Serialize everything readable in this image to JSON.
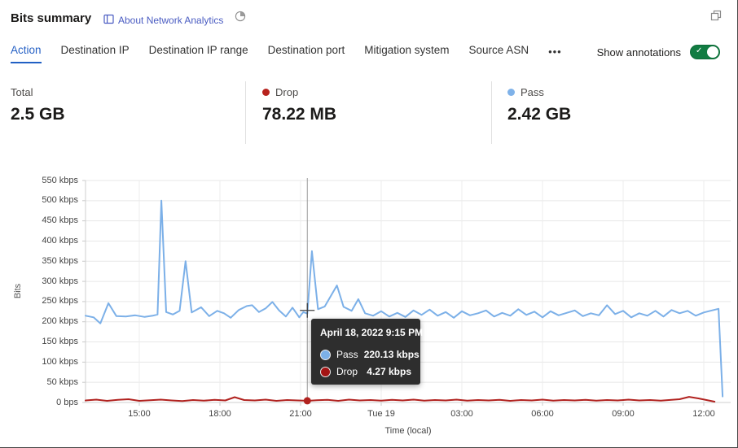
{
  "header": {
    "title": "Bits summary",
    "about_link": "About Network Analytics"
  },
  "tabs": {
    "items": [
      "Action",
      "Destination IP",
      "Destination IP range",
      "Destination port",
      "Mitigation system",
      "Source ASN"
    ],
    "active": "Action",
    "more": "•••"
  },
  "annotations_toggle": {
    "label": "Show annotations",
    "state": "on"
  },
  "stats": [
    {
      "label": "Total",
      "value": "2.5 GB",
      "dot_color": ""
    },
    {
      "label": "Drop",
      "value": "78.22 MB",
      "dot_color": "#b7221d"
    },
    {
      "label": "Pass",
      "value": "2.42 GB",
      "dot_color": "#7fb2e9"
    }
  ],
  "tooltip": {
    "title": "April 18, 2022 9:15 PM",
    "rows": [
      {
        "label": "Pass",
        "value": "220.13 kbps",
        "color": "#7cb0e8"
      },
      {
        "label": "Drop",
        "value": "4.27 kbps",
        "color": "#a31414"
      }
    ]
  },
  "chart_data": {
    "type": "line",
    "title": "Bits summary",
    "xlabel": "Time (local)",
    "ylabel": "Bits",
    "ylim": [
      0,
      550000
    ],
    "x_unit": "hours after 2022-04-18 13:00 local",
    "grid": true,
    "y_ticks": [
      {
        "label": "550 kbps",
        "v": 550
      },
      {
        "label": "500 kbps",
        "v": 500
      },
      {
        "label": "450 kbps",
        "v": 450
      },
      {
        "label": "400 kbps",
        "v": 400
      },
      {
        "label": "350 kbps",
        "v": 350
      },
      {
        "label": "300 kbps",
        "v": 300
      },
      {
        "label": "250 kbps",
        "v": 250
      },
      {
        "label": "200 kbps",
        "v": 200
      },
      {
        "label": "150 kbps",
        "v": 150
      },
      {
        "label": "100 kbps",
        "v": 100
      },
      {
        "label": "50 kbps",
        "v": 50
      },
      {
        "label": "0 bps",
        "v": 0
      }
    ],
    "x_ticks": [
      {
        "label": "15:00",
        "t": 2
      },
      {
        "label": "18:00",
        "t": 5
      },
      {
        "label": "21:00",
        "t": 8
      },
      {
        "label": "Tue 19",
        "t": 11
      },
      {
        "label": "03:00",
        "t": 14
      },
      {
        "label": "06:00",
        "t": 17
      },
      {
        "label": "09:00",
        "t": 20
      },
      {
        "label": "12:00",
        "t": 23
      }
    ],
    "crosshair": {
      "t": 8.25,
      "time": "April 18, 2022 9:15 PM",
      "pass_kbps": 220.13,
      "drop_kbps": 4.27
    },
    "series": [
      {
        "name": "Pass",
        "color": "#7cb0e8",
        "unit": "kbps",
        "points": [
          [
            0,
            215
          ],
          [
            0.3,
            211
          ],
          [
            0.55,
            196
          ],
          [
            0.85,
            246
          ],
          [
            1.15,
            214
          ],
          [
            1.5,
            213
          ],
          [
            1.85,
            216
          ],
          [
            2.2,
            212
          ],
          [
            2.5,
            215
          ],
          [
            2.68,
            218
          ],
          [
            2.82,
            500
          ],
          [
            3.0,
            224
          ],
          [
            3.25,
            218
          ],
          [
            3.5,
            227
          ],
          [
            3.72,
            350
          ],
          [
            3.95,
            223
          ],
          [
            4.3,
            236
          ],
          [
            4.6,
            214
          ],
          [
            4.9,
            227
          ],
          [
            5.15,
            221
          ],
          [
            5.4,
            210
          ],
          [
            5.7,
            229
          ],
          [
            6.0,
            239
          ],
          [
            6.2,
            241
          ],
          [
            6.45,
            224
          ],
          [
            6.7,
            233
          ],
          [
            6.95,
            249
          ],
          [
            7.2,
            228
          ],
          [
            7.45,
            213
          ],
          [
            7.7,
            235
          ],
          [
            7.95,
            211
          ],
          [
            8.1,
            224
          ],
          [
            8.25,
            220.13
          ],
          [
            8.42,
            375
          ],
          [
            8.65,
            231
          ],
          [
            8.9,
            238
          ],
          [
            9.35,
            290
          ],
          [
            9.6,
            237
          ],
          [
            9.9,
            227
          ],
          [
            10.15,
            256
          ],
          [
            10.4,
            221
          ],
          [
            10.7,
            215
          ],
          [
            11.0,
            226
          ],
          [
            11.3,
            213
          ],
          [
            11.6,
            222
          ],
          [
            11.9,
            212
          ],
          [
            12.2,
            228
          ],
          [
            12.5,
            217
          ],
          [
            12.8,
            230
          ],
          [
            13.1,
            215
          ],
          [
            13.4,
            224
          ],
          [
            13.7,
            210
          ],
          [
            14.0,
            226
          ],
          [
            14.3,
            216
          ],
          [
            14.6,
            221
          ],
          [
            14.9,
            228
          ],
          [
            15.2,
            213
          ],
          [
            15.5,
            222
          ],
          [
            15.8,
            215
          ],
          [
            16.1,
            231
          ],
          [
            16.4,
            217
          ],
          [
            16.7,
            225
          ],
          [
            17.0,
            211
          ],
          [
            17.3,
            226
          ],
          [
            17.6,
            216
          ],
          [
            17.9,
            222
          ],
          [
            18.2,
            228
          ],
          [
            18.5,
            214
          ],
          [
            18.8,
            221
          ],
          [
            19.1,
            216
          ],
          [
            19.4,
            241
          ],
          [
            19.7,
            219
          ],
          [
            20.0,
            227
          ],
          [
            20.3,
            211
          ],
          [
            20.6,
            221
          ],
          [
            20.9,
            215
          ],
          [
            21.2,
            227
          ],
          [
            21.5,
            213
          ],
          [
            21.8,
            229
          ],
          [
            22.1,
            221
          ],
          [
            22.4,
            227
          ],
          [
            22.7,
            215
          ],
          [
            23.0,
            223
          ],
          [
            23.3,
            228
          ],
          [
            23.55,
            232
          ],
          [
            23.7,
            15
          ]
        ]
      },
      {
        "name": "Drop",
        "color": "#b1221f",
        "unit": "kbps",
        "points": [
          [
            0,
            5
          ],
          [
            0.4,
            7
          ],
          [
            0.8,
            4
          ],
          [
            1.2,
            6.5
          ],
          [
            1.6,
            8
          ],
          [
            2.0,
            4
          ],
          [
            2.4,
            5.5
          ],
          [
            2.8,
            7
          ],
          [
            3.2,
            5
          ],
          [
            3.6,
            3.5
          ],
          [
            4.0,
            6
          ],
          [
            4.4,
            4.5
          ],
          [
            4.8,
            6.5
          ],
          [
            5.2,
            5
          ],
          [
            5.55,
            13
          ],
          [
            5.9,
            6
          ],
          [
            6.3,
            5
          ],
          [
            6.7,
            7
          ],
          [
            7.1,
            4
          ],
          [
            7.5,
            6
          ],
          [
            7.9,
            5
          ],
          [
            8.25,
            4.27
          ],
          [
            8.6,
            5.5
          ],
          [
            9.0,
            6.5
          ],
          [
            9.4,
            4
          ],
          [
            9.8,
            7
          ],
          [
            10.2,
            5
          ],
          [
            10.6,
            6
          ],
          [
            11.0,
            4.5
          ],
          [
            11.4,
            6.5
          ],
          [
            11.8,
            5
          ],
          [
            12.2,
            7
          ],
          [
            12.6,
            4.5
          ],
          [
            13.0,
            6
          ],
          [
            13.4,
            5
          ],
          [
            13.8,
            7
          ],
          [
            14.2,
            4.5
          ],
          [
            14.6,
            6
          ],
          [
            15.0,
            5
          ],
          [
            15.4,
            6.5
          ],
          [
            15.8,
            4
          ],
          [
            16.2,
            6
          ],
          [
            16.6,
            5
          ],
          [
            17.0,
            7
          ],
          [
            17.4,
            4.5
          ],
          [
            17.8,
            6
          ],
          [
            18.2,
            5
          ],
          [
            18.6,
            6.5
          ],
          [
            19.0,
            4.5
          ],
          [
            19.4,
            6
          ],
          [
            19.8,
            5
          ],
          [
            20.2,
            7
          ],
          [
            20.6,
            5
          ],
          [
            21.0,
            6
          ],
          [
            21.4,
            4.5
          ],
          [
            21.8,
            6.5
          ],
          [
            22.1,
            8
          ],
          [
            22.45,
            14
          ],
          [
            22.8,
            10
          ],
          [
            23.1,
            6
          ],
          [
            23.4,
            2
          ]
        ]
      }
    ]
  }
}
